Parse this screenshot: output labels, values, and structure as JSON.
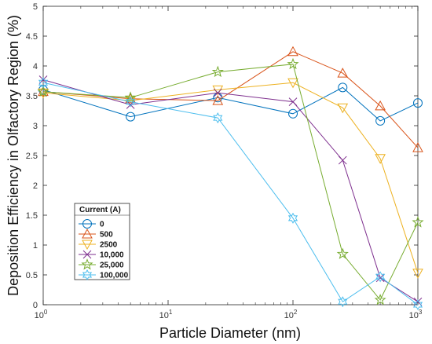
{
  "chart_data": {
    "type": "line",
    "xscale": "log",
    "xlabel": "Particle Diameter (nm)",
    "ylabel": "Deposition Efficiency in Olfactory Region (%)",
    "xlim": [
      1,
      1000
    ],
    "ylim": [
      0,
      5
    ],
    "x_ticks": [
      {
        "value": 1,
        "base": "10",
        "exp": "0"
      },
      {
        "value": 10,
        "base": "10",
        "exp": "1"
      },
      {
        "value": 100,
        "base": "10",
        "exp": "2"
      },
      {
        "value": 1000,
        "base": "10",
        "exp": "3"
      }
    ],
    "y_ticks": [
      "0",
      "0.5",
      "1",
      "1.5",
      "2",
      "2.5",
      "3",
      "3.5",
      "4",
      "4.5",
      "5"
    ],
    "x": [
      1,
      5,
      25,
      100,
      250,
      500,
      1000
    ],
    "grid": false,
    "legend": {
      "title": "Current (A)",
      "position": "lower-left"
    },
    "series": [
      {
        "name": "0",
        "color": "#0072BD",
        "marker": "circle",
        "values": [
          3.6,
          3.15,
          3.47,
          3.2,
          3.64,
          3.08,
          3.38
        ]
      },
      {
        "name": "500",
        "color": "#D95319",
        "marker": "triangle-up",
        "values": [
          3.57,
          3.45,
          3.42,
          4.24,
          3.88,
          3.33,
          2.63
        ]
      },
      {
        "name": "2500",
        "color": "#EDB120",
        "marker": "triangle-down",
        "values": [
          3.55,
          3.42,
          3.6,
          3.72,
          3.3,
          2.45,
          0.53
        ]
      },
      {
        "name": "10,000",
        "color": "#7E2F8E",
        "marker": "x",
        "values": [
          3.77,
          3.35,
          3.55,
          3.4,
          2.42,
          0.45,
          0.05
        ]
      },
      {
        "name": "25,000",
        "color": "#77AC30",
        "marker": "pentagram",
        "values": [
          3.57,
          3.47,
          3.9,
          4.03,
          0.85,
          0.08,
          1.38
        ]
      },
      {
        "name": "100,000",
        "color": "#4DBEEE",
        "marker": "hexagram",
        "values": [
          3.72,
          3.4,
          3.13,
          1.45,
          0.05,
          0.47,
          0.0
        ]
      }
    ]
  }
}
